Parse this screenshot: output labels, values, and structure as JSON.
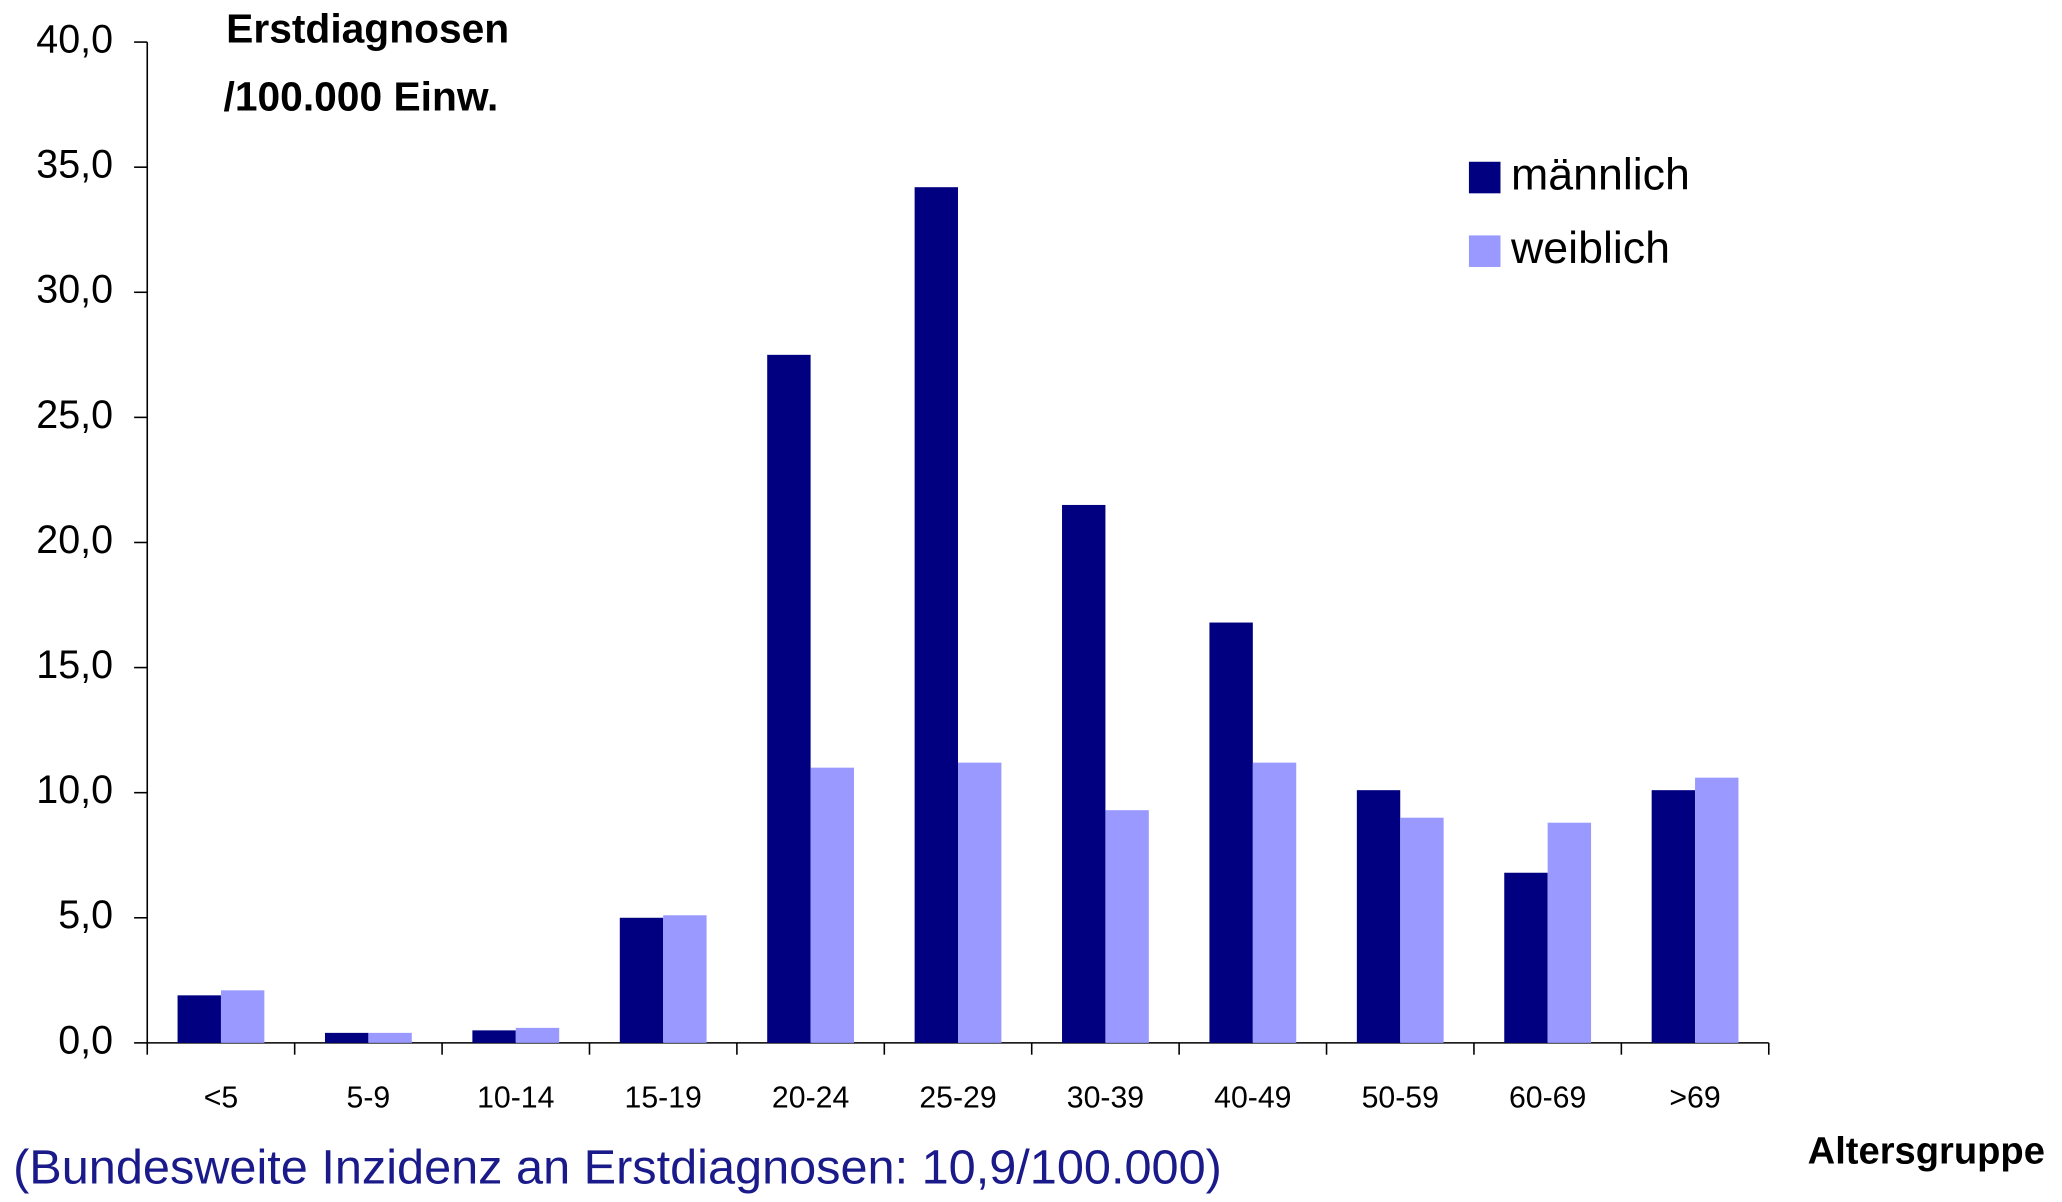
{
  "chart_data": {
    "type": "bar",
    "ylabel": [
      "Erstdiagnosen",
      "/100.000 Einw."
    ],
    "xlabel": "Altersgruppe",
    "note": "(Bundesweite Inzidenz an Erstdiagnosen: 10,9/100.000)",
    "categories": [
      "<5",
      "5-9",
      "10-14",
      "15-19",
      "20-24",
      "25-29",
      "30-39",
      "40-49",
      "50-59",
      "60-69",
      ">69"
    ],
    "series": [
      {
        "name": "männlich",
        "color": "#000080",
        "values": [
          1.9,
          0.4,
          0.5,
          5.0,
          27.5,
          34.2,
          21.5,
          16.8,
          10.1,
          6.8,
          10.1
        ]
      },
      {
        "name": "weiblich",
        "color": "#9999ff",
        "values": [
          2.1,
          0.4,
          0.6,
          5.1,
          11.0,
          11.2,
          9.3,
          11.2,
          9.0,
          8.8,
          10.6
        ]
      }
    ],
    "ylim": [
      0,
      40
    ],
    "yticks": [
      {
        "value": 0,
        "label": "0,0"
      },
      {
        "value": 5,
        "label": "5,0"
      },
      {
        "value": 10,
        "label": "10,0"
      },
      {
        "value": 15,
        "label": "15,0"
      },
      {
        "value": 20,
        "label": "20,0"
      },
      {
        "value": 25,
        "label": "25,0"
      },
      {
        "value": 30,
        "label": "30,0"
      },
      {
        "value": 35,
        "label": "35,0"
      },
      {
        "value": 40,
        "label": "40,0"
      }
    ],
    "grid": false,
    "legend": "upper right"
  }
}
